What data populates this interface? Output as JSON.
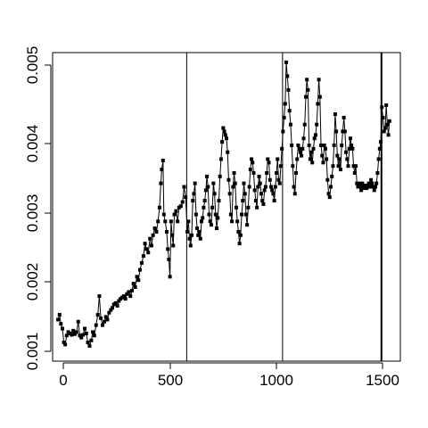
{
  "chart_data": {
    "type": "scatter",
    "title": "",
    "xlabel": "",
    "ylabel": "",
    "xlim": [
      -20,
      1580
    ],
    "ylim": [
      0.00088,
      0.00534
    ],
    "x_ticks": [
      0,
      500,
      1000,
      1500
    ],
    "x_tick_labels": [
      "0",
      "500",
      "1000",
      "1500"
    ],
    "y_ticks": [
      0.001,
      0.002,
      0.003,
      0.004,
      0.005
    ],
    "y_tick_labels": [
      "0.001",
      "0.002",
      "0.003",
      "0.004",
      "0.005"
    ],
    "vertical_lines": [
      597,
      1038,
      1493
    ],
    "marker": "square",
    "point_color": "#000000",
    "legend": "none",
    "grid": false,
    "series": [
      {
        "values": [
          [
            5,
            0.00148
          ],
          [
            12,
            0.00155
          ],
          [
            18,
            0.00142
          ],
          [
            25,
            0.00135
          ],
          [
            32,
            0.00115
          ],
          [
            38,
            0.00112
          ],
          [
            45,
            0.00125
          ],
          [
            52,
            0.0013
          ],
          [
            60,
            0.00128
          ],
          [
            68,
            0.00126
          ],
          [
            75,
            0.00132
          ],
          [
            82,
            0.00127
          ],
          [
            90,
            0.0013
          ],
          [
            98,
            0.00145
          ],
          [
            105,
            0.00125
          ],
          [
            112,
            0.00122
          ],
          [
            120,
            0.00126
          ],
          [
            128,
            0.00135
          ],
          [
            135,
            0.00128
          ],
          [
            142,
            0.00115
          ],
          [
            150,
            0.0011
          ],
          [
            158,
            0.00118
          ],
          [
            165,
            0.0013
          ],
          [
            172,
            0.00125
          ],
          [
            180,
            0.0014
          ],
          [
            188,
            0.00155
          ],
          [
            195,
            0.00182
          ],
          [
            202,
            0.0015
          ],
          [
            210,
            0.0014
          ],
          [
            218,
            0.00145
          ],
          [
            225,
            0.00152
          ],
          [
            232,
            0.00148
          ],
          [
            240,
            0.00158
          ],
          [
            248,
            0.00162
          ],
          [
            255,
            0.00165
          ],
          [
            262,
            0.0017
          ],
          [
            270,
            0.00172
          ],
          [
            278,
            0.00168
          ],
          [
            285,
            0.00175
          ],
          [
            292,
            0.00178
          ],
          [
            300,
            0.0018
          ],
          [
            308,
            0.00182
          ],
          [
            315,
            0.00178
          ],
          [
            322,
            0.00185
          ],
          [
            330,
            0.00188
          ],
          [
            338,
            0.00182
          ],
          [
            345,
            0.0019
          ],
          [
            352,
            0.002
          ],
          [
            360,
            0.00195
          ],
          [
            368,
            0.0021
          ],
          [
            375,
            0.00205
          ],
          [
            382,
            0.0022
          ],
          [
            390,
            0.0023
          ],
          [
            398,
            0.0024
          ],
          [
            405,
            0.00258
          ],
          [
            412,
            0.0025
          ],
          [
            420,
            0.00245
          ],
          [
            428,
            0.00265
          ],
          [
            435,
            0.00255
          ],
          [
            442,
            0.0027
          ],
          [
            450,
            0.0028
          ],
          [
            458,
            0.00275
          ],
          [
            465,
            0.0029
          ],
          [
            472,
            0.0031
          ],
          [
            478,
            0.00345
          ],
          [
            482,
            0.00365
          ],
          [
            488,
            0.00378
          ],
          [
            492,
            0.003
          ],
          [
            498,
            0.0029
          ],
          [
            505,
            0.00275
          ],
          [
            510,
            0.0025
          ],
          [
            515,
            0.00235
          ],
          [
            520,
            0.0021
          ],
          [
            525,
            0.0029
          ],
          [
            530,
            0.0027
          ],
          [
            535,
            0.00255
          ],
          [
            540,
            0.003
          ],
          [
            548,
            0.00305
          ],
          [
            555,
            0.0029
          ],
          [
            562,
            0.0031
          ],
          [
            570,
            0.00312
          ],
          [
            578,
            0.00318
          ],
          [
            585,
            0.0034
          ],
          [
            592,
            0.00325
          ],
          [
            600,
            0.00275
          ],
          [
            605,
            0.0029
          ],
          [
            610,
            0.00265
          ],
          [
            615,
            0.00255
          ],
          [
            620,
            0.0027
          ],
          [
            625,
            0.0032
          ],
          [
            630,
            0.0033
          ],
          [
            635,
            0.00345
          ],
          [
            640,
            0.003
          ],
          [
            645,
            0.0028
          ],
          [
            650,
            0.0027
          ],
          [
            655,
            0.00275
          ],
          [
            660,
            0.00265
          ],
          [
            665,
            0.0029
          ],
          [
            670,
            0.00295
          ],
          [
            675,
            0.0031
          ],
          [
            680,
            0.0032
          ],
          [
            685,
            0.00335
          ],
          [
            690,
            0.00355
          ],
          [
            695,
            0.0034
          ],
          [
            700,
            0.003
          ],
          [
            705,
            0.0029
          ],
          [
            710,
            0.00285
          ],
          [
            715,
            0.0031
          ],
          [
            720,
            0.00345
          ],
          [
            725,
            0.0033
          ],
          [
            730,
            0.003
          ],
          [
            735,
            0.0028
          ],
          [
            740,
            0.00295
          ],
          [
            745,
            0.0032
          ],
          [
            750,
            0.00355
          ],
          [
            755,
            0.0038
          ],
          [
            760,
            0.00405
          ],
          [
            765,
            0.00425
          ],
          [
            770,
            0.0042
          ],
          [
            775,
            0.00415
          ],
          [
            780,
            0.0041
          ],
          [
            785,
            0.0039
          ],
          [
            790,
            0.0035
          ],
          [
            795,
            0.0033
          ],
          [
            800,
            0.003
          ],
          [
            805,
            0.0029
          ],
          [
            810,
            0.0034
          ],
          [
            815,
            0.0036
          ],
          [
            820,
            0.00345
          ],
          [
            825,
            0.0031
          ],
          [
            830,
            0.0029
          ],
          [
            835,
            0.00275
          ],
          [
            840,
            0.00258
          ],
          [
            845,
            0.0027
          ],
          [
            850,
            0.003
          ],
          [
            855,
            0.0032
          ],
          [
            860,
            0.00345
          ],
          [
            865,
            0.0033
          ],
          [
            870,
            0.003
          ],
          [
            875,
            0.00285
          ],
          [
            880,
            0.0031
          ],
          [
            885,
            0.0034
          ],
          [
            890,
            0.00365
          ],
          [
            895,
            0.0038
          ],
          [
            900,
            0.00375
          ],
          [
            905,
            0.0036
          ],
          [
            910,
            0.00335
          ],
          [
            915,
            0.0032
          ],
          [
            920,
            0.0031
          ],
          [
            925,
            0.0034
          ],
          [
            930,
            0.00355
          ],
          [
            935,
            0.00345
          ],
          [
            940,
            0.0033
          ],
          [
            945,
            0.0032
          ],
          [
            950,
            0.00315
          ],
          [
            955,
            0.00335
          ],
          [
            960,
            0.0034
          ],
          [
            965,
            0.0036
          ],
          [
            970,
            0.0038
          ],
          [
            975,
            0.00375
          ],
          [
            980,
            0.0035
          ],
          [
            985,
            0.0034
          ],
          [
            990,
            0.00335
          ],
          [
            995,
            0.0033
          ],
          [
            1000,
            0.0032
          ],
          [
            1005,
            0.0034
          ],
          [
            1010,
            0.0036
          ],
          [
            1015,
            0.0038
          ],
          [
            1020,
            0.0035
          ],
          [
            1025,
            0.00345
          ],
          [
            1030,
            0.0037
          ],
          [
            1035,
            0.00395
          ],
          [
            1040,
            0.0042
          ],
          [
            1045,
            0.0044
          ],
          [
            1050,
            0.0046
          ],
          [
            1055,
            0.0052
          ],
          [
            1060,
            0.005
          ],
          [
            1065,
            0.0048
          ],
          [
            1070,
            0.0045
          ],
          [
            1075,
            0.0043
          ],
          [
            1080,
            0.004
          ],
          [
            1085,
            0.0037
          ],
          [
            1090,
            0.0034
          ],
          [
            1095,
            0.0033
          ],
          [
            1100,
            0.0036
          ],
          [
            1105,
            0.0038
          ],
          [
            1110,
            0.004
          ],
          [
            1115,
            0.00395
          ],
          [
            1120,
            0.0039
          ],
          [
            1125,
            0.00385
          ],
          [
            1130,
            0.00395
          ],
          [
            1135,
            0.0041
          ],
          [
            1140,
            0.0043
          ],
          [
            1145,
            0.0047
          ],
          [
            1150,
            0.00495
          ],
          [
            1155,
            0.0048
          ],
          [
            1160,
            0.004
          ],
          [
            1165,
            0.0038
          ],
          [
            1170,
            0.0039
          ],
          [
            1175,
            0.00375
          ],
          [
            1180,
            0.00395
          ],
          [
            1185,
            0.0041
          ],
          [
            1190,
            0.00415
          ],
          [
            1195,
            0.0043
          ],
          [
            1200,
            0.0046
          ],
          [
            1205,
            0.00495
          ],
          [
            1210,
            0.0047
          ],
          [
            1215,
            0.004
          ],
          [
            1220,
            0.00385
          ],
          [
            1225,
            0.00375
          ],
          [
            1230,
            0.004
          ],
          [
            1235,
            0.00395
          ],
          [
            1240,
            0.0038
          ],
          [
            1245,
            0.0035
          ],
          [
            1250,
            0.0033
          ],
          [
            1255,
            0.00325
          ],
          [
            1260,
            0.0034
          ],
          [
            1265,
            0.00355
          ],
          [
            1270,
            0.0037
          ],
          [
            1275,
            0.004
          ],
          [
            1280,
            0.00445
          ],
          [
            1285,
            0.0042
          ],
          [
            1290,
            0.00385
          ],
          [
            1295,
            0.0037
          ],
          [
            1300,
            0.0038
          ],
          [
            1305,
            0.00365
          ],
          [
            1310,
            0.004
          ],
          [
            1315,
            0.0042
          ],
          [
            1320,
            0.0044
          ],
          [
            1325,
            0.0042
          ],
          [
            1330,
            0.0039
          ],
          [
            1335,
            0.0038
          ],
          [
            1340,
            0.0037
          ],
          [
            1345,
            0.00395
          ],
          [
            1350,
            0.0041
          ],
          [
            1355,
            0.004
          ],
          [
            1360,
            0.00395
          ],
          [
            1365,
            0.0037
          ],
          [
            1370,
            0.0036
          ],
          [
            1375,
            0.0037
          ],
          [
            1380,
            0.00345
          ],
          [
            1385,
            0.0034
          ],
          [
            1390,
            0.00345
          ],
          [
            1395,
            0.0034
          ],
          [
            1400,
            0.00335
          ],
          [
            1405,
            0.00345
          ],
          [
            1410,
            0.0034
          ],
          [
            1415,
            0.00338
          ],
          [
            1420,
            0.00342
          ],
          [
            1425,
            0.00338
          ],
          [
            1430,
            0.0034
          ],
          [
            1435,
            0.00345
          ],
          [
            1440,
            0.0034
          ],
          [
            1445,
            0.0035
          ],
          [
            1450,
            0.00345
          ],
          [
            1455,
            0.0034
          ],
          [
            1460,
            0.00335
          ],
          [
            1465,
            0.0034
          ],
          [
            1470,
            0.00345
          ],
          [
            1475,
            0.0036
          ],
          [
            1480,
            0.0038
          ],
          [
            1485,
            0.00395
          ],
          [
            1490,
            0.00405
          ],
          [
            1495,
            0.00455
          ],
          [
            1500,
            0.0044
          ],
          [
            1505,
            0.0042
          ],
          [
            1510,
            0.00425
          ],
          [
            1515,
            0.00458
          ],
          [
            1520,
            0.0043
          ],
          [
            1525,
            0.00415
          ],
          [
            1530,
            0.00435
          ]
        ]
      }
    ]
  }
}
